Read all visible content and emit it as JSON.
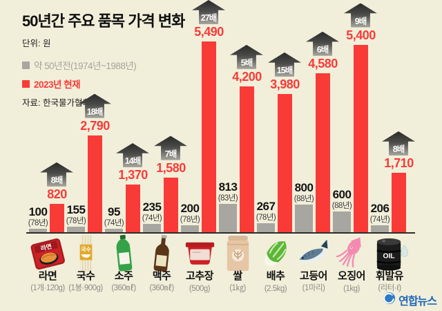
{
  "header": {
    "title": "50년간 주요 품목 가격 변화",
    "unit_label": "단위: 원",
    "legend_old": "약 50년전(1974년~1988년)",
    "legend_new": "2023년 현재",
    "source": "자료: 한국물가협회"
  },
  "footer": {
    "logo_text": "연합뉴스"
  },
  "colors": {
    "background": "#f1efda",
    "old_bar": "#a7a6a0",
    "new_bar": "#f93b38",
    "badge_dark": "#2b2b2b",
    "logo_blue": "#1f66b8"
  },
  "icons": {
    "ramen_pack_label": "라면",
    "noodle_pack_label": "국수",
    "oil_drum_label": "OIL"
  },
  "chart_data": {
    "type": "bar",
    "title": "50년간 주요 품목 가격 변화",
    "unit": "원",
    "grid": false,
    "value_axis_visible": false,
    "legend_position": "top-left",
    "ylim": [
      0,
      5490
    ],
    "categories": [
      "라면",
      "국수",
      "소주",
      "맥주",
      "고추장",
      "쌀",
      "배추",
      "고등어",
      "오징어",
      "휘발유"
    ],
    "series": [
      {
        "name": "약 50년전(1974년~1988년)",
        "color": "#a7a6a0",
        "values": [
          100,
          155,
          95,
          235,
          200,
          813,
          267,
          800,
          600,
          206
        ]
      },
      {
        "name": "2023년 현재",
        "color": "#f93b38",
        "values": [
          820,
          2790,
          1370,
          1580,
          5490,
          4200,
          3980,
          4580,
          5400,
          1710
        ]
      }
    ],
    "items": [
      {
        "name": "라면",
        "spec": "(1개·120g)",
        "old_value": 100,
        "old_value_label": "100",
        "old_year": "(78년)",
        "new_value": 820,
        "new_value_label": "820",
        "multiplier": "8배",
        "icon": "ramen-icon"
      },
      {
        "name": "국수",
        "spec": "(1봉·900g)",
        "old_value": 155,
        "old_value_label": "155",
        "old_year": "(78년)",
        "new_value": 2790,
        "new_value_label": "2,790",
        "multiplier": "18배",
        "icon": "noodles-icon"
      },
      {
        "name": "소주",
        "spec": "(360㎖)",
        "old_value": 95,
        "old_value_label": "95",
        "old_year": "(74년)",
        "new_value": 1370,
        "new_value_label": "1,370",
        "multiplier": "14배",
        "icon": "soju-bottle-icon"
      },
      {
        "name": "맥주",
        "spec": "(360㎖)",
        "old_value": 235,
        "old_value_label": "235",
        "old_year": "(74년)",
        "new_value": 1580,
        "new_value_label": "1,580",
        "multiplier": "7배",
        "icon": "beer-bottle-icon"
      },
      {
        "name": "고추장",
        "spec": "(500g)",
        "old_value": 200,
        "old_value_label": "200",
        "old_year": "(78년)",
        "new_value": 5490,
        "new_value_label": "5,490",
        "multiplier": "27배",
        "icon": "gochujang-tub-icon"
      },
      {
        "name": "쌀",
        "spec": "(1㎏)",
        "old_value": 813,
        "old_value_label": "813",
        "old_year": "(83년)",
        "new_value": 4200,
        "new_value_label": "4,200",
        "multiplier": "5배",
        "icon": "rice-sack-icon"
      },
      {
        "name": "배추",
        "spec": "(2.5kg)",
        "old_value": 267,
        "old_value_label": "267",
        "old_year": "(78년)",
        "new_value": 3980,
        "new_value_label": "3,980",
        "multiplier": "15배",
        "icon": "cabbage-icon"
      },
      {
        "name": "고등어",
        "spec": "(1마리)",
        "old_value": 800,
        "old_value_label": "800",
        "old_year": "(88년)",
        "new_value": 4580,
        "new_value_label": "4,580",
        "multiplier": "6배",
        "icon": "mackerel-icon"
      },
      {
        "name": "오징어",
        "spec": "(1kg)",
        "old_value": 600,
        "old_value_label": "600",
        "old_year": "(88년)",
        "new_value": 5400,
        "new_value_label": "5,400",
        "multiplier": "9배",
        "icon": "squid-icon"
      },
      {
        "name": "휘발유",
        "spec": "(리터·ℓ)",
        "old_value": 206,
        "old_value_label": "206",
        "old_year": "(74년)",
        "new_value": 1710,
        "new_value_label": "1,710",
        "multiplier": "8배",
        "icon": "oil-drum-icon"
      }
    ]
  }
}
